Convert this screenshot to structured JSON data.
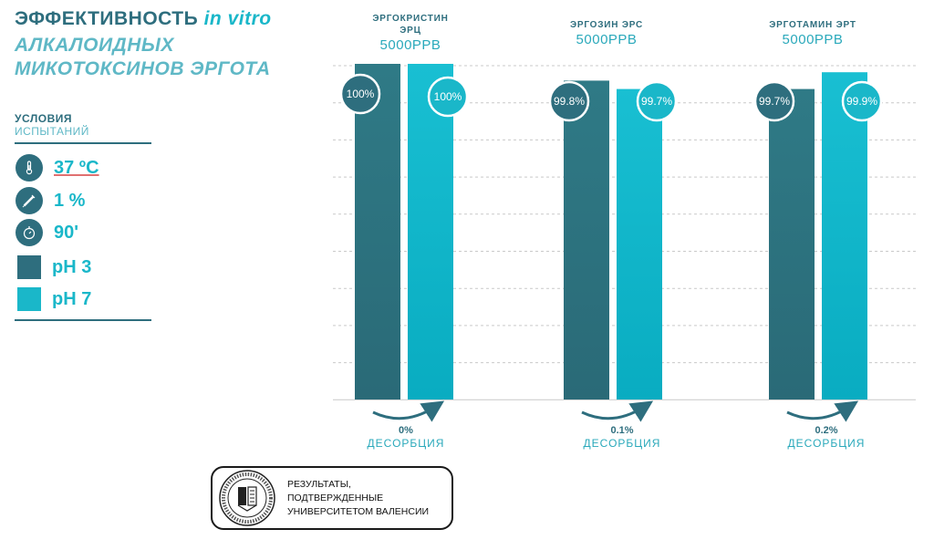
{
  "title": {
    "main": "ЭФФЕКТИВНОСТЬ",
    "italic": "in vitro",
    "line2": "АЛКАЛОИДНЫХ",
    "line3": "МИКОТОКСИНОВ ЭРГОТА"
  },
  "conditions": {
    "heading1": "УСЛОВИЯ",
    "heading2": "ИСПЫТАНИЙ",
    "temperature": "37 ºC",
    "dose": "1 %",
    "time": "90'",
    "ph3": "pH 3",
    "ph7": "pH 7"
  },
  "colors": {
    "ph3": "#2e6e7e",
    "ph7": "#1ab7c9",
    "accent": "#2aa9bb"
  },
  "chart_data": {
    "type": "bar",
    "categories": [
      "ЭРГОКРИСТИН ЭРЦ",
      "ЭРГОЗИН ЭРС",
      "ЭРГОТАМИН ЭРТ"
    ],
    "concentration": "5000PPB",
    "series": [
      {
        "name": "pH 3",
        "values": [
          100,
          99.8,
          99.7
        ],
        "labels": [
          "100%",
          "99.8%",
          "99.7%"
        ]
      },
      {
        "name": "pH 7",
        "values": [
          100,
          99.7,
          99.9
        ],
        "labels": [
          "100%",
          "99.7%",
          "99.9%"
        ]
      }
    ],
    "desorption": [
      {
        "value": "0%",
        "label": "ДЕСОРБЦИЯ"
      },
      {
        "value": "0.1%",
        "label": "ДЕСОРБЦИЯ"
      },
      {
        "value": "0.2%",
        "label": "ДЕСОРБЦИЯ"
      }
    ],
    "grid": true
  },
  "groups": [
    {
      "name1": "ЭРГОКРИСТИН",
      "name2": "ЭРЦ",
      "conc": "5000PPB"
    },
    {
      "name1": "ЭРГОЗИН ЭРС",
      "name2": "",
      "conc": "5000PPB"
    },
    {
      "name1": "ЭРГОТАМИН ЭРТ",
      "name2": "",
      "conc": "5000PPB"
    }
  ],
  "verification": {
    "line1": "РЕЗУЛЬТАТЫ,",
    "line2": "ПОДТВЕРЖДЕННЫЕ",
    "line3": "УНИВЕРСИТЕТОМ ВАЛЕНСИИ"
  }
}
